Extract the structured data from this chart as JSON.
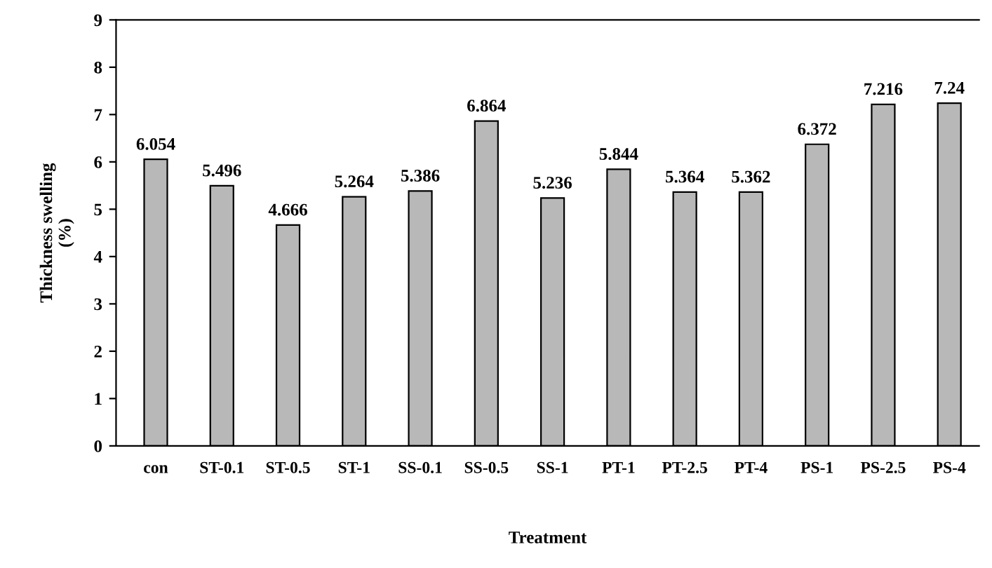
{
  "chart_data": {
    "type": "bar",
    "xlabel": "Treatment",
    "ylabel": "Thickness swelling\n(%)",
    "categories": [
      "con",
      "ST-0.1",
      "ST-0.5",
      "ST-1",
      "SS-0.1",
      "SS-0.5",
      "SS-1",
      "PT-1",
      "PT-2.5",
      "PT-4",
      "PS-1",
      "PS-2.5",
      "PS-4"
    ],
    "values": [
      6.054,
      5.496,
      4.666,
      5.264,
      5.386,
      6.864,
      5.236,
      5.844,
      5.364,
      5.362,
      6.372,
      7.216,
      7.24
    ],
    "color": "#b8b8b8",
    "ylim": [
      0,
      9
    ],
    "yticks": [
      0,
      1,
      2,
      3,
      4,
      5,
      6,
      7,
      8,
      9
    ],
    "grid": false,
    "data_labels": true
  }
}
